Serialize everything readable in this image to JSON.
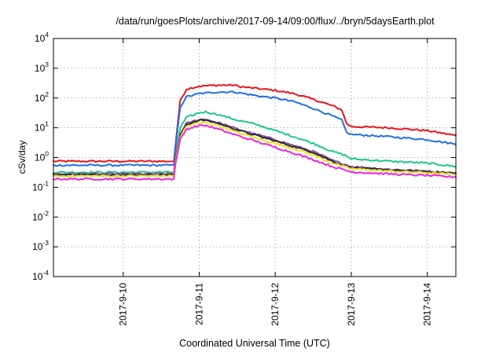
{
  "chart_data": {
    "type": "line",
    "title": "/data/run/goesPlots/archive/2017-09-14/09:00/flux/../bryn/5daysEarth.plot",
    "xlabel": "Coordinated Universal Time (UTC)",
    "ylabel": "cSv/day",
    "yscale": "log",
    "ylim": [
      0.0001,
      10000
    ],
    "yticks": [
      {
        "base": "10",
        "exp": "-4",
        "value": 0.0001
      },
      {
        "base": "10",
        "exp": "-3",
        "value": 0.001
      },
      {
        "base": "10",
        "exp": "-2",
        "value": 0.01
      },
      {
        "base": "10",
        "exp": "-1",
        "value": 0.1
      },
      {
        "base": "10",
        "exp": "0",
        "value": 1
      },
      {
        "base": "10",
        "exp": "1",
        "value": 10
      },
      {
        "base": "10",
        "exp": "2",
        "value": 100
      },
      {
        "base": "10",
        "exp": "3",
        "value": 1000
      },
      {
        "base": "10",
        "exp": "4",
        "value": 10000
      }
    ],
    "xlim": [
      "2017-09-09T02:00",
      "2017-09-14T09:00"
    ],
    "xticks": [
      {
        "label": "2017-9-10",
        "date": "2017-09-10T00:00"
      },
      {
        "label": "2017-9-11",
        "date": "2017-09-11T00:00"
      },
      {
        "label": "2017-9-12",
        "date": "2017-09-12T00:00"
      },
      {
        "label": "2017-9-13",
        "date": "2017-09-13T00:00"
      },
      {
        "label": "2017-9-14",
        "date": "2017-09-14T00:00"
      }
    ],
    "grid": true,
    "series": [
      {
        "color": "#e8141c",
        "points": [
          [
            "2017-09-09T02:00",
            0.75
          ],
          [
            "2017-09-10T16:00",
            0.75
          ],
          [
            "2017-09-10T16:30",
            2.5
          ],
          [
            "2017-09-10T18:00",
            80
          ],
          [
            "2017-09-10T20:00",
            200
          ],
          [
            "2017-09-11T00:00",
            250
          ],
          [
            "2017-09-11T06:00",
            270
          ],
          [
            "2017-09-11T11:00",
            270
          ],
          [
            "2017-09-11T13:00",
            240
          ],
          [
            "2017-09-11T18:00",
            210
          ],
          [
            "2017-09-12T00:00",
            180
          ],
          [
            "2017-09-12T06:00",
            140
          ],
          [
            "2017-09-12T12:00",
            90
          ],
          [
            "2017-09-12T18:00",
            55
          ],
          [
            "2017-09-12T21:00",
            40
          ],
          [
            "2017-09-12T22:30",
            14
          ],
          [
            "2017-09-13T00:00",
            11
          ],
          [
            "2017-09-13T12:00",
            10
          ],
          [
            "2017-09-14T00:00",
            8
          ],
          [
            "2017-09-14T09:00",
            5.5
          ]
        ]
      },
      {
        "color": "#1f6ee8",
        "points": [
          [
            "2017-09-09T02:00",
            0.55
          ],
          [
            "2017-09-10T16:00",
            0.55
          ],
          [
            "2017-09-10T16:30",
            2
          ],
          [
            "2017-09-10T18:00",
            50
          ],
          [
            "2017-09-10T20:00",
            110
          ],
          [
            "2017-09-11T00:00",
            140
          ],
          [
            "2017-09-11T06:00",
            160
          ],
          [
            "2017-09-11T11:00",
            160
          ],
          [
            "2017-09-11T18:00",
            120
          ],
          [
            "2017-09-12T00:00",
            100
          ],
          [
            "2017-09-12T06:00",
            75
          ],
          [
            "2017-09-12T12:00",
            45
          ],
          [
            "2017-09-12T18:00",
            25
          ],
          [
            "2017-09-12T21:00",
            18
          ],
          [
            "2017-09-12T22:30",
            7
          ],
          [
            "2017-09-13T00:00",
            6
          ],
          [
            "2017-09-13T12:00",
            5
          ],
          [
            "2017-09-14T00:00",
            4
          ],
          [
            "2017-09-14T09:00",
            2.8
          ]
        ]
      },
      {
        "color": "#1ec48f",
        "points": [
          [
            "2017-09-09T02:00",
            0.32
          ],
          [
            "2017-09-10T16:00",
            0.32
          ],
          [
            "2017-09-10T16:30",
            1
          ],
          [
            "2017-09-10T18:00",
            10
          ],
          [
            "2017-09-10T20:00",
            22
          ],
          [
            "2017-09-11T00:00",
            32
          ],
          [
            "2017-09-11T02:00",
            34
          ],
          [
            "2017-09-11T06:00",
            28
          ],
          [
            "2017-09-11T12:00",
            18
          ],
          [
            "2017-09-11T18:00",
            13
          ],
          [
            "2017-09-12T00:00",
            8
          ],
          [
            "2017-09-12T06:00",
            5
          ],
          [
            "2017-09-12T12:00",
            3
          ],
          [
            "2017-09-12T18:00",
            1.6
          ],
          [
            "2017-09-12T22:00",
            1.2
          ],
          [
            "2017-09-13T00:00",
            0.9
          ],
          [
            "2017-09-13T12:00",
            0.75
          ],
          [
            "2017-09-14T00:00",
            0.65
          ],
          [
            "2017-09-14T09:00",
            0.5
          ]
        ]
      },
      {
        "color": "#8a4b8a",
        "points": [
          [
            "2017-09-09T02:00",
            0.28
          ],
          [
            "2017-09-10T16:00",
            0.28
          ],
          [
            "2017-09-10T16:30",
            0.9
          ],
          [
            "2017-09-10T18:00",
            6
          ],
          [
            "2017-09-10T20:00",
            14
          ],
          [
            "2017-09-11T00:00",
            19
          ],
          [
            "2017-09-11T02:00",
            19
          ],
          [
            "2017-09-11T06:00",
            15
          ],
          [
            "2017-09-11T12:00",
            9
          ],
          [
            "2017-09-11T18:00",
            6
          ],
          [
            "2017-09-12T00:00",
            4
          ],
          [
            "2017-09-12T06:00",
            2.5
          ],
          [
            "2017-09-12T12:00",
            1.6
          ],
          [
            "2017-09-12T18:00",
            0.8
          ],
          [
            "2017-09-13T00:00",
            0.5
          ],
          [
            "2017-09-13T12:00",
            0.4
          ],
          [
            "2017-09-14T00:00",
            0.35
          ],
          [
            "2017-09-14T09:00",
            0.3
          ]
        ]
      },
      {
        "color": "#262a3f",
        "points": [
          [
            "2017-09-09T02:00",
            0.26
          ],
          [
            "2017-09-10T16:00",
            0.26
          ],
          [
            "2017-09-10T16:30",
            0.8
          ],
          [
            "2017-09-10T18:00",
            5.5
          ],
          [
            "2017-09-10T20:00",
            13
          ],
          [
            "2017-09-11T00:00",
            18
          ],
          [
            "2017-09-11T02:00",
            18
          ],
          [
            "2017-09-11T06:00",
            14
          ],
          [
            "2017-09-11T12:00",
            8.5
          ],
          [
            "2017-09-11T18:00",
            5.5
          ],
          [
            "2017-09-12T00:00",
            3.6
          ],
          [
            "2017-09-12T06:00",
            2.3
          ],
          [
            "2017-09-12T12:00",
            1.5
          ],
          [
            "2017-09-12T18:00",
            0.75
          ],
          [
            "2017-09-13T00:00",
            0.45
          ],
          [
            "2017-09-13T12:00",
            0.38
          ],
          [
            "2017-09-14T00:00",
            0.33
          ],
          [
            "2017-09-14T09:00",
            0.29
          ]
        ]
      },
      {
        "color": "#f0e020",
        "points": [
          [
            "2017-09-09T02:00",
            0.24
          ],
          [
            "2017-09-10T16:00",
            0.24
          ],
          [
            "2017-09-10T16:30",
            0.7
          ],
          [
            "2017-09-10T18:00",
            5
          ],
          [
            "2017-09-10T20:00",
            11
          ],
          [
            "2017-09-11T00:00",
            15
          ],
          [
            "2017-09-11T02:00",
            15
          ],
          [
            "2017-09-11T06:00",
            12
          ],
          [
            "2017-09-11T12:00",
            7
          ],
          [
            "2017-09-11T18:00",
            4.5
          ],
          [
            "2017-09-12T00:00",
            3
          ],
          [
            "2017-09-12T06:00",
            2
          ],
          [
            "2017-09-12T12:00",
            1.2
          ],
          [
            "2017-09-12T18:00",
            0.65
          ],
          [
            "2017-09-13T00:00",
            0.42
          ],
          [
            "2017-09-13T12:00",
            0.35
          ],
          [
            "2017-09-14T00:00",
            0.31
          ],
          [
            "2017-09-14T09:00",
            0.27
          ]
        ]
      },
      {
        "color": "#ee22dd",
        "points": [
          [
            "2017-09-09T02:00",
            0.19
          ],
          [
            "2017-09-10T16:00",
            0.19
          ],
          [
            "2017-09-10T16:30",
            0.6
          ],
          [
            "2017-09-10T18:00",
            4
          ],
          [
            "2017-09-10T20:00",
            9
          ],
          [
            "2017-09-11T00:00",
            12
          ],
          [
            "2017-09-11T02:00",
            12
          ],
          [
            "2017-09-11T06:00",
            9
          ],
          [
            "2017-09-11T12:00",
            5.5
          ],
          [
            "2017-09-11T18:00",
            3.5
          ],
          [
            "2017-09-12T00:00",
            2.2
          ],
          [
            "2017-09-12T06:00",
            1.4
          ],
          [
            "2017-09-12T12:00",
            0.85
          ],
          [
            "2017-09-12T18:00",
            0.5
          ],
          [
            "2017-09-13T00:00",
            0.33
          ],
          [
            "2017-09-13T12:00",
            0.28
          ],
          [
            "2017-09-14T00:00",
            0.25
          ],
          [
            "2017-09-14T09:00",
            0.22
          ]
        ]
      }
    ]
  }
}
